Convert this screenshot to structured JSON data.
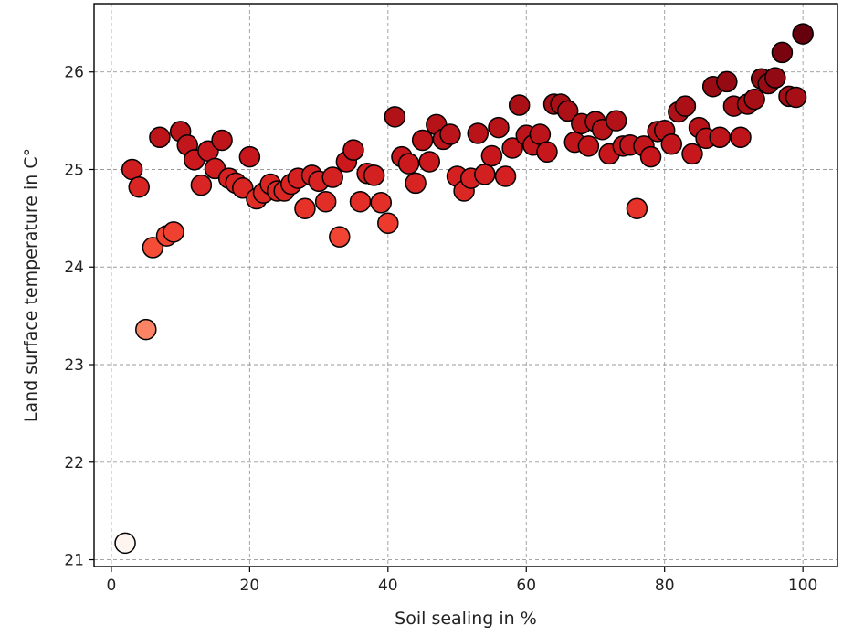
{
  "chart_data": {
    "type": "scatter",
    "title": "",
    "xlabel": "Soil sealing in %",
    "ylabel": "Land surface temperature in C°",
    "xlim": [
      -2.5,
      105
    ],
    "ylim": [
      20.93,
      26.7
    ],
    "xticks": [
      0,
      20,
      40,
      60,
      80,
      100
    ],
    "yticks": [
      21,
      22,
      23,
      24,
      25,
      26
    ],
    "grid": true,
    "colormap": "Reds",
    "color_by": "y",
    "color_range": [
      21.17,
      26.39
    ],
    "points": [
      {
        "x": 2,
        "y": 21.17
      },
      {
        "x": 3,
        "y": 25.0
      },
      {
        "x": 4,
        "y": 24.82
      },
      {
        "x": 5,
        "y": 23.36
      },
      {
        "x": 6,
        "y": 24.2
      },
      {
        "x": 7,
        "y": 25.33
      },
      {
        "x": 8,
        "y": 24.32
      },
      {
        "x": 9,
        "y": 24.36
      },
      {
        "x": 10,
        "y": 25.39
      },
      {
        "x": 11,
        "y": 25.25
      },
      {
        "x": 12,
        "y": 25.1
      },
      {
        "x": 13,
        "y": 24.84
      },
      {
        "x": 14,
        "y": 25.19
      },
      {
        "x": 15,
        "y": 25.01
      },
      {
        "x": 16,
        "y": 25.3
      },
      {
        "x": 17,
        "y": 24.91
      },
      {
        "x": 18,
        "y": 24.86
      },
      {
        "x": 19,
        "y": 24.81
      },
      {
        "x": 20,
        "y": 25.13
      },
      {
        "x": 21,
        "y": 24.7
      },
      {
        "x": 22,
        "y": 24.76
      },
      {
        "x": 23,
        "y": 24.85
      },
      {
        "x": 24,
        "y": 24.78
      },
      {
        "x": 25,
        "y": 24.78
      },
      {
        "x": 26,
        "y": 24.85
      },
      {
        "x": 27,
        "y": 24.91
      },
      {
        "x": 28,
        "y": 24.6
      },
      {
        "x": 29,
        "y": 24.94
      },
      {
        "x": 30,
        "y": 24.88
      },
      {
        "x": 31,
        "y": 24.67
      },
      {
        "x": 32,
        "y": 24.92
      },
      {
        "x": 33,
        "y": 24.31
      },
      {
        "x": 34,
        "y": 25.08
      },
      {
        "x": 35,
        "y": 25.2
      },
      {
        "x": 36,
        "y": 24.67
      },
      {
        "x": 37,
        "y": 24.96
      },
      {
        "x": 38,
        "y": 24.94
      },
      {
        "x": 39,
        "y": 24.66
      },
      {
        "x": 40,
        "y": 24.45
      },
      {
        "x": 41,
        "y": 25.54
      },
      {
        "x": 42,
        "y": 25.13
      },
      {
        "x": 43,
        "y": 25.06
      },
      {
        "x": 44,
        "y": 24.86
      },
      {
        "x": 45,
        "y": 25.3
      },
      {
        "x": 46,
        "y": 25.08
      },
      {
        "x": 47,
        "y": 25.46
      },
      {
        "x": 48,
        "y": 25.31
      },
      {
        "x": 49,
        "y": 25.36
      },
      {
        "x": 50,
        "y": 24.93
      },
      {
        "x": 51,
        "y": 24.78
      },
      {
        "x": 52,
        "y": 24.91
      },
      {
        "x": 53,
        "y": 25.37
      },
      {
        "x": 54,
        "y": 24.95
      },
      {
        "x": 55,
        "y": 25.14
      },
      {
        "x": 56,
        "y": 25.43
      },
      {
        "x": 57,
        "y": 24.93
      },
      {
        "x": 58,
        "y": 25.22
      },
      {
        "x": 59,
        "y": 25.66
      },
      {
        "x": 60,
        "y": 25.35
      },
      {
        "x": 61,
        "y": 25.25
      },
      {
        "x": 62,
        "y": 25.36
      },
      {
        "x": 63,
        "y": 25.18
      },
      {
        "x": 64,
        "y": 25.67
      },
      {
        "x": 65,
        "y": 25.67
      },
      {
        "x": 66,
        "y": 25.6
      },
      {
        "x": 67,
        "y": 25.28
      },
      {
        "x": 68,
        "y": 25.47
      },
      {
        "x": 69,
        "y": 25.24
      },
      {
        "x": 70,
        "y": 25.49
      },
      {
        "x": 71,
        "y": 25.41
      },
      {
        "x": 72,
        "y": 25.16
      },
      {
        "x": 73,
        "y": 25.5
      },
      {
        "x": 74,
        "y": 25.24
      },
      {
        "x": 75,
        "y": 25.25
      },
      {
        "x": 76,
        "y": 24.6
      },
      {
        "x": 77,
        "y": 25.24
      },
      {
        "x": 78,
        "y": 25.13
      },
      {
        "x": 79,
        "y": 25.39
      },
      {
        "x": 80,
        "y": 25.4
      },
      {
        "x": 81,
        "y": 25.26
      },
      {
        "x": 82,
        "y": 25.59
      },
      {
        "x": 83,
        "y": 25.65
      },
      {
        "x": 84,
        "y": 25.16
      },
      {
        "x": 85,
        "y": 25.43
      },
      {
        "x": 86,
        "y": 25.32
      },
      {
        "x": 87,
        "y": 25.85
      },
      {
        "x": 88,
        "y": 25.33
      },
      {
        "x": 89,
        "y": 25.9
      },
      {
        "x": 90,
        "y": 25.65
      },
      {
        "x": 91,
        "y": 25.33
      },
      {
        "x": 92,
        "y": 25.67
      },
      {
        "x": 93,
        "y": 25.72
      },
      {
        "x": 94,
        "y": 25.93
      },
      {
        "x": 95,
        "y": 25.88
      },
      {
        "x": 96,
        "y": 25.94
      },
      {
        "x": 97,
        "y": 26.2
      },
      {
        "x": 98,
        "y": 25.75
      },
      {
        "x": 99,
        "y": 25.74
      },
      {
        "x": 100,
        "y": 26.39
      }
    ]
  }
}
